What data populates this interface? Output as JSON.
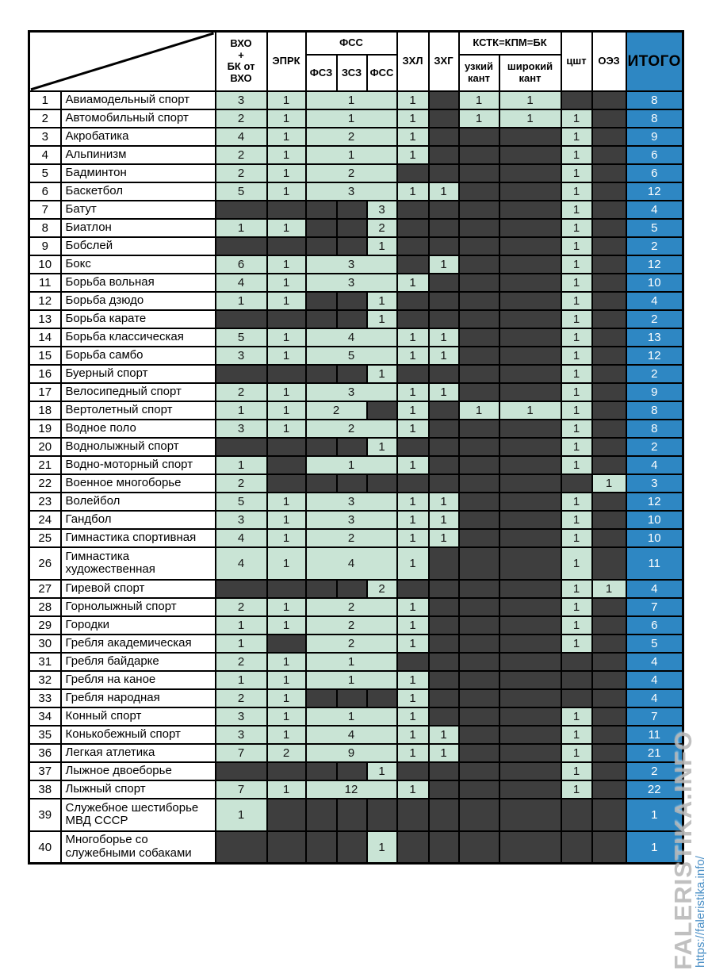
{
  "header": {
    "vho": "ВХО\n+\nБК от\nВХО",
    "eprk": "ЭПРК",
    "fss_group": "ФСС",
    "fsz": "ФСЗ",
    "zsz": "ЗСЗ",
    "fss": "ФСС",
    "zhl": "ЗХЛ",
    "zhg": "ЗХГ",
    "kstk_group": "КСТК=КПМ=БК",
    "uk": "узкий\nкант",
    "shk": "широкий\nкант",
    "tsht": "цшт",
    "oez": "ОЭЗ",
    "itogo": "ИТОГО"
  },
  "colors": {
    "green": "#c9e4d5",
    "dark": "#3e3e3e",
    "blue": "#2e87c3",
    "watermark_gray": "rgba(178,178,178,0.82)",
    "watermark_blue": "#4a8fc6"
  },
  "watermark": {
    "site_name": "FALERISTIKA.INFO",
    "site_url": "https://faleristika.info/"
  },
  "rows": [
    {
      "n": "1",
      "name": "Авиамодельный спорт",
      "merge": 3,
      "v": [
        3,
        1,
        1,
        null,
        null,
        1,
        null,
        1,
        1,
        null,
        null,
        8
      ]
    },
    {
      "n": "2",
      "name": "Автомобильный спорт",
      "merge": 3,
      "v": [
        2,
        1,
        1,
        null,
        null,
        1,
        null,
        1,
        1,
        1,
        null,
        8
      ]
    },
    {
      "n": "3",
      "name": "Акробатика",
      "merge": 3,
      "v": [
        4,
        1,
        2,
        null,
        null,
        1,
        null,
        null,
        null,
        1,
        null,
        9
      ]
    },
    {
      "n": "4",
      "name": "Альпинизм",
      "merge": 3,
      "v": [
        2,
        1,
        1,
        null,
        null,
        1,
        null,
        null,
        null,
        1,
        null,
        6
      ]
    },
    {
      "n": "5",
      "name": "Бадминтон",
      "merge": 3,
      "v": [
        2,
        1,
        2,
        null,
        null,
        null,
        null,
        null,
        null,
        1,
        null,
        6
      ]
    },
    {
      "n": "6",
      "name": "Баскетбол",
      "merge": 3,
      "v": [
        5,
        1,
        3,
        null,
        null,
        1,
        1,
        null,
        null,
        1,
        null,
        12
      ]
    },
    {
      "n": "7",
      "name": "Батут",
      "merge": 0,
      "v": [
        null,
        null,
        null,
        null,
        3,
        null,
        null,
        null,
        null,
        1,
        null,
        4
      ]
    },
    {
      "n": "8",
      "name": "Биатлон",
      "merge": 0,
      "v": [
        1,
        1,
        null,
        null,
        2,
        null,
        null,
        null,
        null,
        1,
        null,
        5
      ]
    },
    {
      "n": "9",
      "name": "Бобслей",
      "merge": 0,
      "v": [
        null,
        null,
        null,
        null,
        1,
        null,
        null,
        null,
        null,
        1,
        null,
        2
      ]
    },
    {
      "n": "10",
      "name": "Бокс",
      "merge": 3,
      "v": [
        6,
        1,
        3,
        null,
        null,
        null,
        1,
        null,
        null,
        1,
        null,
        12
      ]
    },
    {
      "n": "11",
      "name": "Борьба вольная",
      "merge": 3,
      "v": [
        4,
        1,
        3,
        null,
        null,
        1,
        null,
        null,
        null,
        1,
        null,
        10
      ]
    },
    {
      "n": "12",
      "name": "Борьба дзюдо",
      "merge": 0,
      "v": [
        1,
        1,
        null,
        null,
        1,
        null,
        null,
        null,
        null,
        1,
        null,
        4
      ]
    },
    {
      "n": "13",
      "name": "Борьба карате",
      "merge": 0,
      "v": [
        null,
        null,
        null,
        null,
        1,
        null,
        null,
        null,
        null,
        1,
        null,
        2
      ]
    },
    {
      "n": "14",
      "name": "Борьба классическая",
      "merge": 3,
      "v": [
        5,
        1,
        4,
        null,
        null,
        1,
        1,
        null,
        null,
        1,
        null,
        13
      ]
    },
    {
      "n": "15",
      "name": "Борьба самбо",
      "merge": 3,
      "v": [
        3,
        1,
        5,
        null,
        null,
        1,
        1,
        null,
        null,
        1,
        null,
        12
      ]
    },
    {
      "n": "16",
      "name": "Буерный спорт",
      "merge": 0,
      "v": [
        null,
        null,
        null,
        null,
        1,
        null,
        null,
        null,
        null,
        1,
        null,
        2
      ]
    },
    {
      "n": "17",
      "name": "Велосипедный спорт",
      "merge": 3,
      "v": [
        2,
        1,
        3,
        null,
        null,
        1,
        1,
        null,
        null,
        1,
        null,
        9
      ]
    },
    {
      "n": "18",
      "name": "Вертолетный спорт",
      "merge": 2,
      "v": [
        1,
        1,
        2,
        null,
        null,
        1,
        null,
        1,
        1,
        1,
        null,
        8
      ]
    },
    {
      "n": "19",
      "name": "Водное поло",
      "merge": 3,
      "v": [
        3,
        1,
        2,
        null,
        null,
        1,
        null,
        null,
        null,
        1,
        null,
        8
      ]
    },
    {
      "n": "20",
      "name": "Воднолыжный спорт",
      "merge": 0,
      "v": [
        null,
        null,
        null,
        null,
        1,
        null,
        null,
        null,
        null,
        1,
        null,
        2
      ]
    },
    {
      "n": "21",
      "name": "Водно-моторный спорт",
      "merge": 3,
      "v": [
        1,
        null,
        1,
        null,
        null,
        1,
        null,
        null,
        null,
        1,
        null,
        4
      ]
    },
    {
      "n": "22",
      "name": "Военное многоборье",
      "merge": 0,
      "v": [
        2,
        null,
        null,
        null,
        null,
        null,
        null,
        null,
        null,
        null,
        1,
        3
      ]
    },
    {
      "n": "23",
      "name": "Волейбол",
      "merge": 3,
      "v": [
        5,
        1,
        3,
        null,
        null,
        1,
        1,
        null,
        null,
        1,
        null,
        12
      ]
    },
    {
      "n": "24",
      "name": "Гандбол",
      "merge": 3,
      "v": [
        3,
        1,
        3,
        null,
        null,
        1,
        1,
        null,
        null,
        1,
        null,
        10
      ]
    },
    {
      "n": "25",
      "name": "Гимнастика спортивная",
      "merge": 3,
      "v": [
        4,
        1,
        2,
        null,
        null,
        1,
        1,
        null,
        null,
        1,
        null,
        10
      ]
    },
    {
      "n": "26",
      "name": "Гимнастика\nхудожественная",
      "merge": 3,
      "tall": true,
      "v": [
        4,
        1,
        4,
        null,
        null,
        1,
        null,
        null,
        null,
        1,
        null,
        11
      ]
    },
    {
      "n": "27",
      "name": "Гиревой спорт",
      "merge": 0,
      "v": [
        null,
        null,
        null,
        null,
        2,
        null,
        null,
        null,
        null,
        1,
        1,
        4
      ]
    },
    {
      "n": "28",
      "name": "Горнолыжный спорт",
      "merge": 3,
      "v": [
        2,
        1,
        2,
        null,
        null,
        1,
        null,
        null,
        null,
        1,
        null,
        7
      ]
    },
    {
      "n": "29",
      "name": "Городки",
      "merge": 3,
      "v": [
        1,
        1,
        2,
        null,
        null,
        1,
        null,
        null,
        null,
        1,
        null,
        6
      ]
    },
    {
      "n": "30",
      "name": "Гребля академическая",
      "merge": 3,
      "v": [
        1,
        null,
        2,
        null,
        null,
        1,
        null,
        null,
        null,
        1,
        null,
        5
      ]
    },
    {
      "n": "31",
      "name": "Гребля байдарке",
      "merge": 3,
      "v": [
        2,
        1,
        1,
        null,
        null,
        null,
        null,
        null,
        null,
        null,
        null,
        4
      ]
    },
    {
      "n": "32",
      "name": "Гребля на каное",
      "merge": 3,
      "v": [
        1,
        1,
        1,
        null,
        null,
        1,
        null,
        null,
        null,
        null,
        null,
        4
      ]
    },
    {
      "n": "33",
      "name": "Гребля народная",
      "merge": 0,
      "v": [
        2,
        1,
        null,
        null,
        null,
        1,
        null,
        null,
        null,
        null,
        null,
        4
      ]
    },
    {
      "n": "34",
      "name": "Конный спорт",
      "merge": 3,
      "v": [
        3,
        1,
        1,
        null,
        null,
        1,
        null,
        null,
        null,
        1,
        null,
        7
      ]
    },
    {
      "n": "35",
      "name": "Конькобежный спорт",
      "merge": 3,
      "v": [
        3,
        1,
        4,
        null,
        null,
        1,
        1,
        null,
        null,
        1,
        null,
        11
      ]
    },
    {
      "n": "36",
      "name": "Легкая атлетика",
      "merge": 3,
      "v": [
        7,
        2,
        9,
        null,
        null,
        1,
        1,
        null,
        null,
        1,
        null,
        21
      ]
    },
    {
      "n": "37",
      "name": "Лыжное двоеборье",
      "merge": 0,
      "v": [
        null,
        null,
        null,
        null,
        1,
        null,
        null,
        null,
        null,
        1,
        null,
        2
      ]
    },
    {
      "n": "38",
      "name": "Лыжный спорт",
      "merge": 3,
      "v": [
        7,
        1,
        12,
        null,
        null,
        1,
        null,
        null,
        null,
        1,
        null,
        22
      ]
    },
    {
      "n": "39",
      "name": "Служебное шестиборье\nМВД СССР",
      "merge": 0,
      "tall": true,
      "v": [
        1,
        null,
        null,
        null,
        null,
        null,
        null,
        null,
        null,
        null,
        null,
        1
      ]
    },
    {
      "n": "40",
      "name": "Многоборье со\nслужебными собаками",
      "merge": 0,
      "tall": true,
      "v": [
        null,
        null,
        null,
        null,
        1,
        null,
        null,
        null,
        null,
        null,
        null,
        1
      ]
    }
  ]
}
